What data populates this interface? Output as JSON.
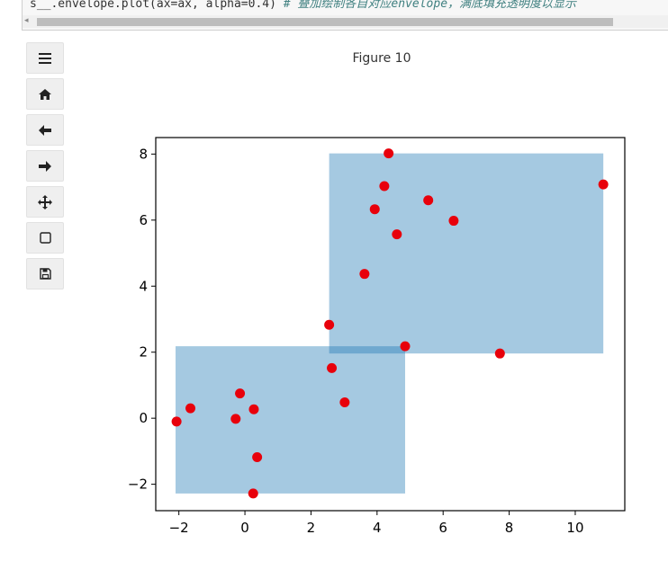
{
  "code_cell": {
    "line_start": "s__.envelope.plot(ax=ax, alpha=0.4)",
    "comment": "# 叠加绘制各自对应envelope，满底填充透明度以显示"
  },
  "toolbar": {
    "buttons": [
      {
        "name": "menu-button",
        "icon": "hamburger-icon"
      },
      {
        "name": "home-button",
        "icon": "home-icon"
      },
      {
        "name": "back-button",
        "icon": "arrow-left-icon"
      },
      {
        "name": "forward-button",
        "icon": "arrow-right-icon"
      },
      {
        "name": "pan-button",
        "icon": "move-icon"
      },
      {
        "name": "zoom-button",
        "icon": "square-icon"
      },
      {
        "name": "save-button",
        "icon": "floppy-disk-icon"
      }
    ]
  },
  "figure": {
    "title": "Figure 10"
  },
  "chart_data": {
    "type": "scatter",
    "title": "",
    "xlabel": "",
    "ylabel": "",
    "xlim": [
      -2.7,
      11.5
    ],
    "ylim": [
      -2.8,
      8.5
    ],
    "xticks": [
      -2,
      0,
      2,
      4,
      6,
      8,
      10
    ],
    "yticks": [
      -2,
      0,
      2,
      4,
      6,
      8
    ],
    "grid": false,
    "envelopes": [
      {
        "xmin": -2.1,
        "xmax": 4.85,
        "ymin": -2.28,
        "ymax": 2.18,
        "color": "#1f77b4",
        "alpha": 0.4
      },
      {
        "xmin": 2.55,
        "xmax": 10.85,
        "ymin": 1.96,
        "ymax": 8.02,
        "color": "#1f77b4",
        "alpha": 0.4
      }
    ],
    "point_color": "#e8000b",
    "points": [
      {
        "x": -2.07,
        "y": -0.1
      },
      {
        "x": -1.65,
        "y": 0.3
      },
      {
        "x": -0.15,
        "y": 0.75
      },
      {
        "x": -0.28,
        "y": -0.02
      },
      {
        "x": 0.27,
        "y": 0.27
      },
      {
        "x": 0.37,
        "y": -1.18
      },
      {
        "x": 0.25,
        "y": -2.28
      },
      {
        "x": 2.63,
        "y": 1.52
      },
      {
        "x": 3.02,
        "y": 0.48
      },
      {
        "x": 2.55,
        "y": 2.83
      },
      {
        "x": 4.85,
        "y": 2.18
      },
      {
        "x": 3.62,
        "y": 4.37
      },
      {
        "x": 3.93,
        "y": 6.33
      },
      {
        "x": 4.22,
        "y": 7.03
      },
      {
        "x": 4.35,
        "y": 8.02
      },
      {
        "x": 4.6,
        "y": 5.57
      },
      {
        "x": 5.55,
        "y": 6.6
      },
      {
        "x": 6.32,
        "y": 5.98
      },
      {
        "x": 7.72,
        "y": 1.96
      },
      {
        "x": 10.85,
        "y": 7.08
      }
    ]
  }
}
